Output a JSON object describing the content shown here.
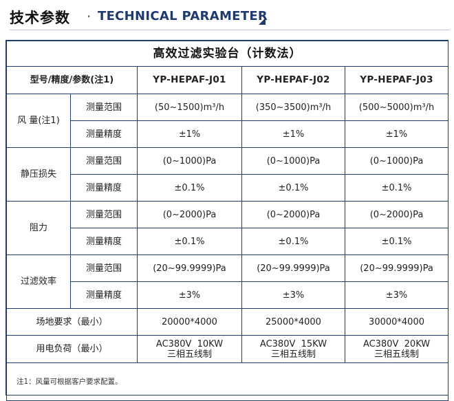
{
  "header": {
    "title_cn": "技术参数",
    "dot": "·",
    "title_en": "TECHNICAL PARAMETER"
  },
  "table": {
    "title": "高效过滤实验台（计数法）",
    "header_label": "型号/精度/参数(注1)",
    "models": [
      "YP-HEPAF-J01",
      "YP-HEPAF-J02",
      "YP-HEPAF-J03"
    ],
    "groups": [
      {
        "name": "风 量(注1)",
        "rows": [
          {
            "label": "测量范围",
            "values": [
              "(50~1500)m³/h",
              "(350~3500)m³/h",
              "(500~5000)m³/h"
            ]
          },
          {
            "label": "测量精度",
            "values": [
              "±1%",
              "±1%",
              "±1%"
            ]
          }
        ]
      },
      {
        "name": "静压损失",
        "rows": [
          {
            "label": "测量范围",
            "values": [
              "(0~1000)Pa",
              "(0~1000)Pa",
              "(0~1000)Pa"
            ]
          },
          {
            "label": "测量精度",
            "values": [
              "±0.1%",
              "±0.1%",
              "±0.1%"
            ]
          }
        ]
      },
      {
        "name": "阻力",
        "rows": [
          {
            "label": "测量范围",
            "values": [
              "(0~2000)Pa",
              "(0~2000)Pa",
              "(0~2000)Pa"
            ]
          },
          {
            "label": "测量精度",
            "values": [
              "±0.1%",
              "±0.1%",
              "±0.1%"
            ]
          }
        ]
      },
      {
        "name": "过滤效率",
        "rows": [
          {
            "label": "测量范围",
            "values": [
              "(20~99.9999)Pa",
              "(20~99.9999)Pa",
              "(20~99.9999)Pa"
            ]
          },
          {
            "label": "测量精度",
            "values": [
              "±3%",
              "±3%",
              "±3%"
            ]
          }
        ]
      }
    ],
    "site": {
      "label": "场地要求（最小）",
      "values": [
        "20000*4000",
        "25000*4000",
        "30000*4000"
      ]
    },
    "power": {
      "label": "用电负荷（最小）",
      "values": [
        {
          "line1": "AC380V  10KW",
          "line2": "三相五线制"
        },
        {
          "line1": "AC380V  15KW",
          "line2": "三相五线制"
        },
        {
          "line1": "AC380V  20KW",
          "line2": "三相五线制"
        }
      ]
    },
    "note": "注1：风量可根据客户要求配置。"
  },
  "colors": {
    "border": "#1e3a6e",
    "accent": "#1e3a6e"
  }
}
